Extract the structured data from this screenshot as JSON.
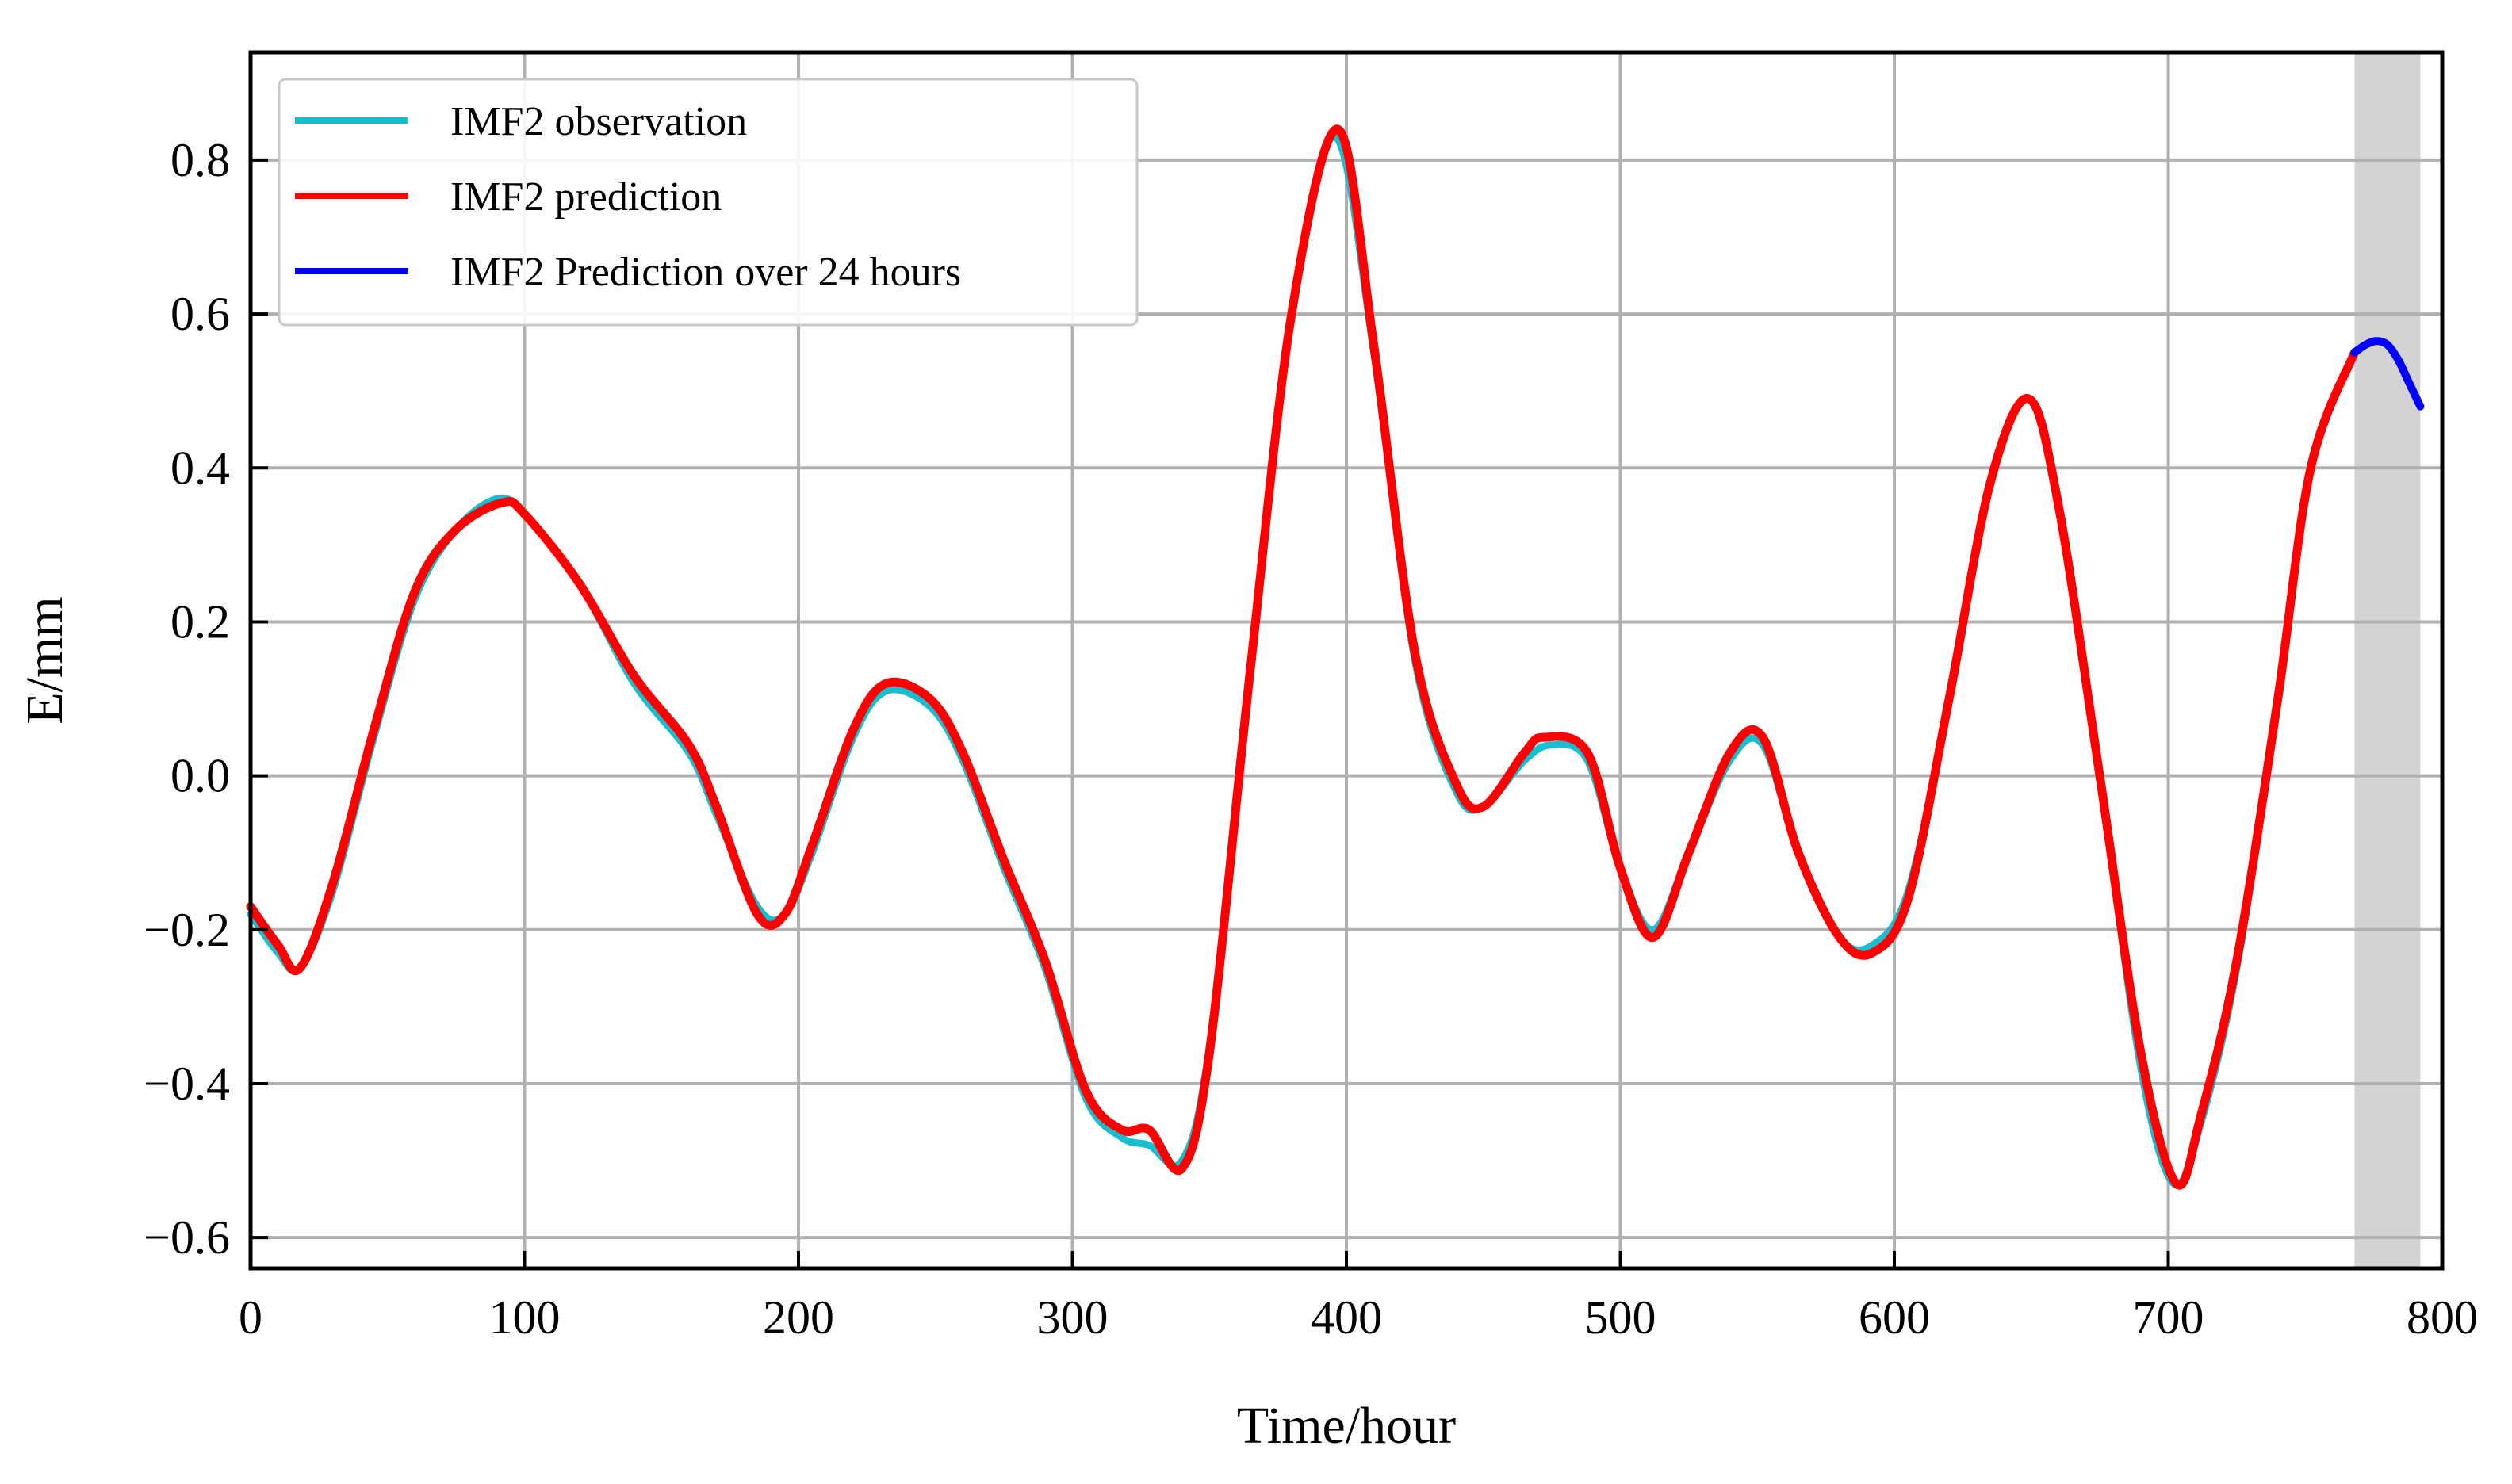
{
  "chart_data": {
    "type": "line",
    "title": "",
    "xlabel": "Time/hour",
    "ylabel": "E/mm",
    "xlim": [
      0,
      800
    ],
    "ylim": [
      -0.64,
      0.94
    ],
    "x_ticks": [
      0,
      100,
      200,
      300,
      400,
      500,
      600,
      700,
      800
    ],
    "x_tick_labels": [
      "0",
      "100",
      "200",
      "300",
      "400",
      "500",
      "600",
      "700",
      "800"
    ],
    "y_ticks": [
      -0.6,
      -0.4,
      -0.2,
      0.0,
      0.2,
      0.4,
      0.6,
      0.8
    ],
    "y_tick_labels": [
      "−0.6",
      "−0.4",
      "−0.2",
      "0.0",
      "0.2",
      "0.4",
      "0.6",
      "0.8"
    ],
    "grid": true,
    "legend_position": "top-left",
    "shaded_region": {
      "x_start": 768,
      "x_end": 792,
      "color": "#d3d3d3"
    },
    "series": [
      {
        "name": "IMF2 observation",
        "color": "#17becf",
        "x": [
          0,
          10,
          18,
          30,
          45,
          60,
          75,
          90,
          100,
          120,
          140,
          160,
          170,
          185,
          195,
          205,
          220,
          232,
          248,
          260,
          275,
          290,
          305,
          318,
          328,
          340,
          350,
          365,
          380,
          396,
          410,
          425,
          440,
          450,
          465,
          475,
          488,
          500,
          512,
          525,
          540,
          552,
          565,
          580,
          592,
          605,
          620,
          635,
          649,
          660,
          675,
          690,
          702,
          712,
          725,
          740,
          752,
          768
        ],
        "y": [
          -0.18,
          -0.23,
          -0.25,
          -0.15,
          0.05,
          0.23,
          0.32,
          0.36,
          0.34,
          0.25,
          0.12,
          0.03,
          -0.05,
          -0.17,
          -0.18,
          -0.1,
          0.05,
          0.11,
          0.09,
          0.02,
          -0.12,
          -0.25,
          -0.42,
          -0.47,
          -0.48,
          -0.5,
          -0.35,
          0.15,
          0.6,
          0.83,
          0.55,
          0.15,
          -0.02,
          -0.04,
          0.02,
          0.04,
          0.02,
          -0.12,
          -0.2,
          -0.1,
          0.02,
          0.04,
          -0.1,
          -0.21,
          -0.22,
          -0.15,
          0.1,
          0.38,
          0.49,
          0.35,
          0.0,
          -0.38,
          -0.53,
          -0.45,
          -0.25,
          0.1,
          0.4,
          0.55
        ]
      },
      {
        "name": "IMF2 prediction",
        "color": "#ff0000",
        "x": [
          0,
          10,
          18,
          30,
          45,
          60,
          75,
          92,
          100,
          120,
          140,
          160,
          170,
          185,
          195,
          205,
          220,
          232,
          248,
          260,
          275,
          290,
          305,
          318,
          328,
          340,
          350,
          365,
          380,
          397,
          410,
          425,
          440,
          450,
          465,
          472,
          488,
          500,
          512,
          525,
          540,
          552,
          565,
          580,
          592,
          605,
          620,
          635,
          649,
          660,
          675,
          690,
          703,
          712,
          725,
          740,
          752,
          768
        ],
        "y": [
          -0.17,
          -0.22,
          -0.25,
          -0.14,
          0.06,
          0.24,
          0.32,
          0.355,
          0.34,
          0.25,
          0.13,
          0.04,
          -0.04,
          -0.18,
          -0.18,
          -0.09,
          0.06,
          0.12,
          0.1,
          0.03,
          -0.11,
          -0.24,
          -0.41,
          -0.46,
          -0.46,
          -0.51,
          -0.36,
          0.14,
          0.6,
          0.84,
          0.56,
          0.16,
          -0.01,
          -0.04,
          0.03,
          0.05,
          0.03,
          -0.12,
          -0.21,
          -0.1,
          0.03,
          0.05,
          -0.1,
          -0.21,
          -0.23,
          -0.16,
          0.1,
          0.38,
          0.49,
          0.35,
          0.0,
          -0.36,
          -0.53,
          -0.44,
          -0.24,
          0.1,
          0.4,
          0.55
        ]
      },
      {
        "name": "IMF2 Prediction over 24 hours",
        "color": "#0000ff",
        "x": [
          768,
          772,
          776,
          780,
          784,
          788,
          792
        ],
        "y": [
          0.55,
          0.56,
          0.565,
          0.56,
          0.54,
          0.51,
          0.48
        ]
      }
    ]
  }
}
